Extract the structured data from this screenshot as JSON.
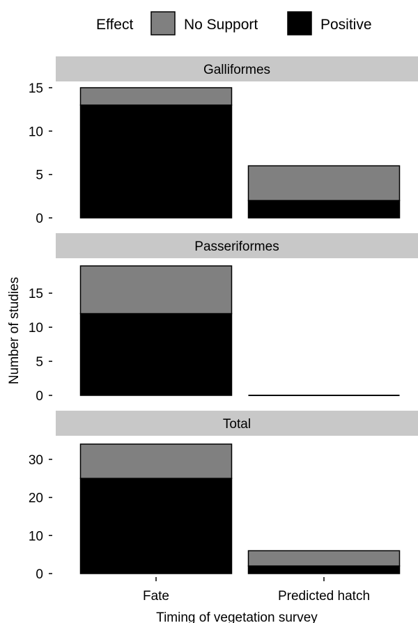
{
  "legend": {
    "title": "Effect",
    "entries": [
      {
        "name": "No Support",
        "color": "#808080"
      },
      {
        "name": "Positive",
        "color": "#000000"
      }
    ]
  },
  "chart_data": {
    "type": "bar",
    "stacked": true,
    "xlabel": "Timing of vegetation survey",
    "ylabel": "Number of studies",
    "categories": [
      "Fate",
      "Predicted hatch"
    ],
    "legend_position": "top",
    "facet_strip_color": "#c8c8c8",
    "panels": [
      {
        "title": "Galliformes",
        "ylim": [
          0,
          15
        ],
        "yticks": [
          0,
          5,
          10,
          15
        ],
        "series": [
          {
            "name": "Positive",
            "color": "#000000",
            "values": [
              13,
              2
            ]
          },
          {
            "name": "No Support",
            "color": "#808080",
            "values": [
              2,
              4
            ]
          }
        ]
      },
      {
        "title": "Passeriformes",
        "ylim": [
          0,
          19
        ],
        "yticks": [
          0,
          5,
          10,
          15
        ],
        "series": [
          {
            "name": "Positive",
            "color": "#000000",
            "values": [
              12,
              0
            ]
          },
          {
            "name": "No Support",
            "color": "#808080",
            "values": [
              7,
              0
            ]
          }
        ]
      },
      {
        "title": "Total",
        "ylim": [
          0,
          34
        ],
        "yticks": [
          0,
          10,
          20,
          30
        ],
        "series": [
          {
            "name": "Positive",
            "color": "#000000",
            "values": [
              25,
              2
            ]
          },
          {
            "name": "No Support",
            "color": "#808080",
            "values": [
              9,
              4
            ]
          }
        ]
      }
    ]
  }
}
